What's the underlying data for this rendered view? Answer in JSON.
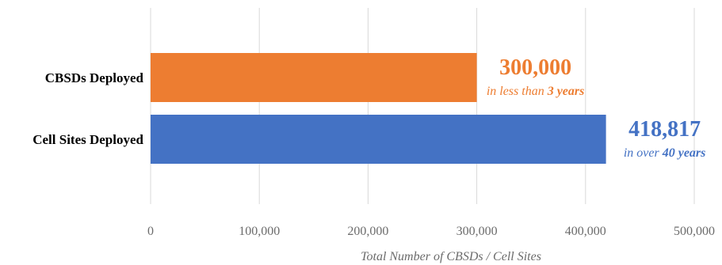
{
  "chart_data": {
    "type": "bar",
    "orientation": "horizontal",
    "categories": [
      "CBSDs Deployed",
      "Cell Sites Deployed"
    ],
    "values": [
      300000,
      418817
    ],
    "colors": [
      "#ED7D31",
      "#4472C4"
    ],
    "xlim": [
      0,
      500000
    ],
    "xticks": [
      "0",
      "100,000",
      "200,000",
      "300,000",
      "400,000",
      "500,000"
    ],
    "xlabel": "Total Number of CBSDs / Cell Sites",
    "grid": true,
    "annotations": [
      {
        "value_text": "300,000",
        "note_prefix": "in less than ",
        "note_emphasis": "3 years",
        "note_suffix": ""
      },
      {
        "value_text": "418,817",
        "note_prefix": "in over ",
        "note_emphasis": "40 years",
        "note_suffix": ""
      }
    ]
  }
}
